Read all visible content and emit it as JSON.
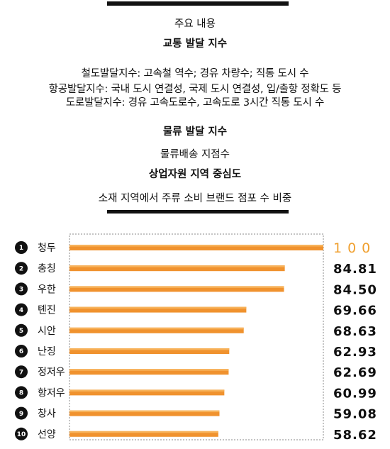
{
  "header": {
    "heading": "주요 내용",
    "traffic_title": "교통 발달 지수",
    "traffic_lines": [
      "철도발달지수: 고속철 역수; 경유 차량수; 직통 도시 수",
      "항공발달지수: 국내 도시 연결성, 국제 도시 연결성, 입/출항 정확도 등",
      "도로발달지수: 경유 고속도로수, 고속도로 3시간 직통 도시 수"
    ],
    "logistics_title": "물류 발달 지수",
    "logistics_line": "물류배송 지점수",
    "commerce_title": "상업자원 지역 중심도",
    "commerce_line": "소재 지역에서 주류 소비 브랜드 점포 수 비중"
  },
  "colors": {
    "bar": "#f0922e",
    "bar_highlight": "#f7b25a",
    "top_value": "#f0a030",
    "text": "#111111",
    "rule": "#111111"
  },
  "chart_data": {
    "type": "bar",
    "orientation": "horizontal",
    "ranks": [
      "1",
      "2",
      "3",
      "4",
      "5",
      "6",
      "7",
      "8",
      "9",
      "10"
    ],
    "categories": [
      "청두",
      "충칭",
      "우한",
      "톈진",
      "시안",
      "난징",
      "정저우",
      "항저우",
      "창사",
      "선양"
    ],
    "values": [
      100,
      84.81,
      84.5,
      69.66,
      68.63,
      62.93,
      62.69,
      60.99,
      59.08,
      58.62
    ],
    "value_labels": [
      "100",
      "84.81",
      "84.50",
      "69.66",
      "68.63",
      "62.93",
      "62.69",
      "60.99",
      "59.08",
      "58.62"
    ],
    "xlim": [
      0,
      100
    ],
    "title": "",
    "xlabel": "",
    "ylabel": "",
    "grid": false,
    "legend": "none"
  }
}
